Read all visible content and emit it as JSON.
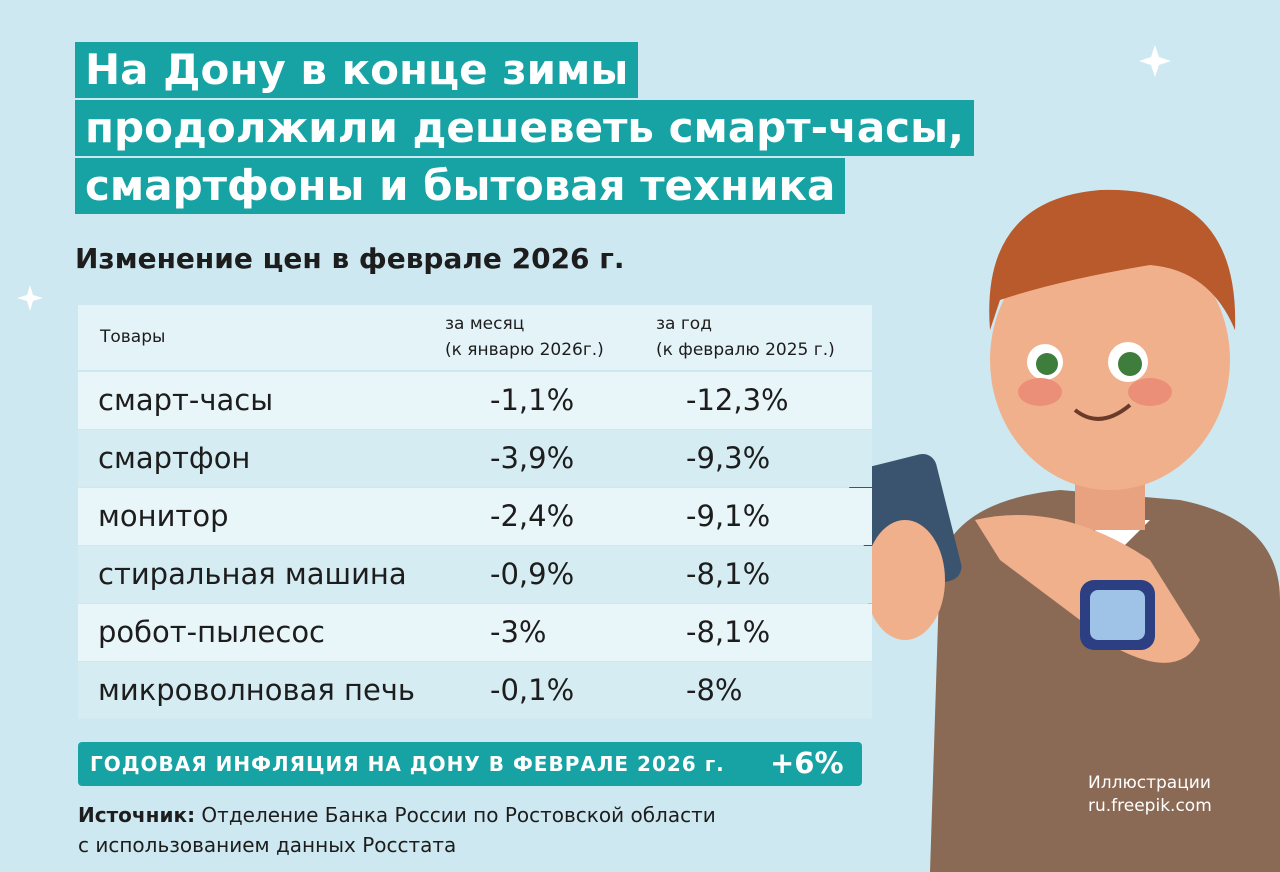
{
  "title": {
    "lines": [
      "На Дону в конце зимы",
      "продолжили дешеветь смарт-часы,",
      "смартфоны и бытовая техника"
    ]
  },
  "subtitle": "Изменение цен в феврале 2026 г.",
  "table": {
    "header": [
      [
        "Товары"
      ],
      [
        "за месяц",
        "(к январю 2026г.)"
      ],
      [
        "за год",
        "(к февралю 2025 г.)"
      ]
    ],
    "rows": [
      [
        "смарт-часы",
        "-1,1%",
        "-12,3%"
      ],
      [
        "смартфон",
        "-3,9%",
        "-9,3%"
      ],
      [
        "монитор",
        "-2,4%",
        "-9,1%"
      ],
      [
        "стиральная машина",
        "-0,9%",
        "-8,1%"
      ],
      [
        "робот-пылесос",
        "-3%",
        "-8,1%"
      ],
      [
        "микроволновая печь",
        "-0,1%",
        "-8%"
      ]
    ]
  },
  "inflation": {
    "label": "ГОДОВАЯ ИНФЛЯЦИЯ НА ДОНУ В ФЕВРАЛЕ 2026 г.",
    "value": "+6%"
  },
  "source": {
    "label": "Источник:",
    "lines": [
      "Отделение Банка России по Ростовской области",
      "с использованием данных Росстата"
    ]
  },
  "credit": {
    "lines": [
      "Иллюстрации",
      "ru.freepik.com"
    ]
  }
}
